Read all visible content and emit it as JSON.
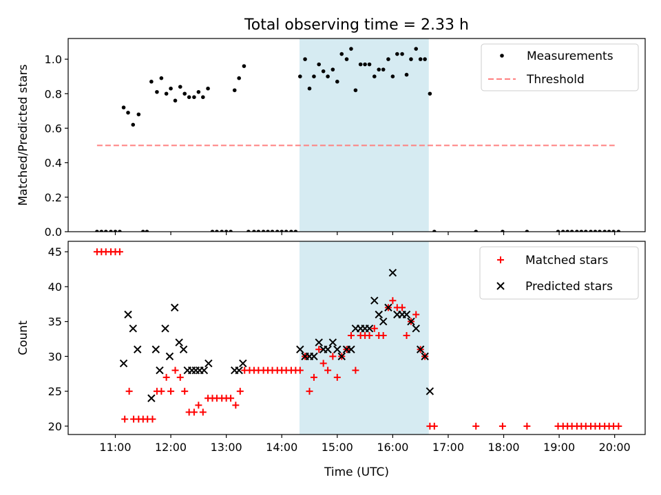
{
  "figure": {
    "title": "Total observing time = 2.33 h",
    "xlabel": "Time (UTC)",
    "x_ticks": [
      {
        "t": 11.0,
        "label": "11:00"
      },
      {
        "t": 12.0,
        "label": "12:00"
      },
      {
        "t": 13.0,
        "label": "13:00"
      },
      {
        "t": 14.0,
        "label": "14:00"
      },
      {
        "t": 15.0,
        "label": "15:00"
      },
      {
        "t": 16.0,
        "label": "16:00"
      },
      {
        "t": 17.0,
        "label": "17:00"
      },
      {
        "t": 18.0,
        "label": "18:00"
      },
      {
        "t": 19.0,
        "label": "19:00"
      },
      {
        "t": 20.0,
        "label": "20:00"
      }
    ],
    "xlim": [
      10.15,
      20.55
    ],
    "shaded_span": [
      14.32,
      16.65
    ],
    "shade_color": "#add8e6"
  },
  "chart_data": [
    {
      "type": "scatter",
      "ylabel": "Matched/Predicted stars",
      "ylim": [
        0,
        1.12
      ],
      "yticks": [
        "0.0",
        "0.2",
        "0.4",
        "0.6",
        "0.8",
        "1.0"
      ],
      "legend_position": "top-right",
      "series": [
        {
          "name": "Measurements",
          "marker": "dot",
          "color": "#000000",
          "points": [
            [
              10.67,
              0
            ],
            [
              10.75,
              0
            ],
            [
              10.83,
              0
            ],
            [
              10.92,
              0
            ],
            [
              11.0,
              0
            ],
            [
              11.08,
              0
            ],
            [
              11.15,
              0.72
            ],
            [
              11.23,
              0.69
            ],
            [
              11.32,
              0.62
            ],
            [
              11.42,
              0.68
            ],
            [
              11.5,
              0
            ],
            [
              11.57,
              0
            ],
            [
              11.65,
              0.87
            ],
            [
              11.75,
              0.81
            ],
            [
              11.83,
              0.89
            ],
            [
              11.92,
              0.8
            ],
            [
              12.0,
              0.83
            ],
            [
              12.08,
              0.76
            ],
            [
              12.17,
              0.84
            ],
            [
              12.25,
              0.8
            ],
            [
              12.33,
              0.78
            ],
            [
              12.42,
              0.78
            ],
            [
              12.5,
              0.81
            ],
            [
              12.58,
              0.78
            ],
            [
              12.67,
              0.83
            ],
            [
              12.75,
              0
            ],
            [
              12.83,
              0
            ],
            [
              12.92,
              0
            ],
            [
              13.0,
              0
            ],
            [
              13.08,
              0
            ],
            [
              13.15,
              0.82
            ],
            [
              13.23,
              0.89
            ],
            [
              13.32,
              0.96
            ],
            [
              13.4,
              0
            ],
            [
              13.5,
              0
            ],
            [
              13.58,
              0
            ],
            [
              13.67,
              0
            ],
            [
              13.75,
              0
            ],
            [
              13.83,
              0
            ],
            [
              13.92,
              0
            ],
            [
              14.0,
              0
            ],
            [
              14.08,
              0
            ],
            [
              14.17,
              0
            ],
            [
              14.25,
              0
            ],
            [
              14.33,
              0.9
            ],
            [
              14.42,
              1.0
            ],
            [
              14.5,
              0.83
            ],
            [
              14.58,
              0.9
            ],
            [
              14.67,
              0.97
            ],
            [
              14.75,
              0.93
            ],
            [
              14.83,
              0.9
            ],
            [
              14.92,
              0.94
            ],
            [
              15.0,
              0.87
            ],
            [
              15.08,
              1.03
            ],
            [
              15.17,
              1.0
            ],
            [
              15.25,
              1.06
            ],
            [
              15.33,
              0.82
            ],
            [
              15.42,
              0.97
            ],
            [
              15.5,
              0.97
            ],
            [
              15.58,
              0.97
            ],
            [
              15.67,
              0.9
            ],
            [
              15.75,
              0.94
            ],
            [
              15.83,
              0.94
            ],
            [
              15.92,
              1.0
            ],
            [
              16.0,
              0.9
            ],
            [
              16.08,
              1.03
            ],
            [
              16.17,
              1.03
            ],
            [
              16.25,
              0.91
            ],
            [
              16.33,
              1.0
            ],
            [
              16.42,
              1.06
            ],
            [
              16.5,
              1.0
            ],
            [
              16.58,
              1.0
            ],
            [
              16.67,
              0.8
            ],
            [
              16.75,
              0
            ],
            [
              17.5,
              0
            ],
            [
              17.98,
              0
            ],
            [
              18.42,
              0
            ],
            [
              18.98,
              0
            ],
            [
              19.07,
              0
            ],
            [
              19.15,
              0
            ],
            [
              19.23,
              0
            ],
            [
              19.32,
              0
            ],
            [
              19.4,
              0
            ],
            [
              19.48,
              0
            ],
            [
              19.57,
              0
            ],
            [
              19.65,
              0
            ],
            [
              19.73,
              0
            ],
            [
              19.82,
              0
            ],
            [
              19.9,
              0
            ],
            [
              19.98,
              0
            ],
            [
              20.07,
              0
            ]
          ]
        },
        {
          "name": "Threshold",
          "marker": "dashed-line",
          "color": "#ff7f7f",
          "points": [
            [
              10.67,
              0.5
            ],
            [
              20.0,
              0.5
            ]
          ]
        }
      ]
    },
    {
      "type": "scatter",
      "ylabel": "Count",
      "ylim": [
        18.8,
        46.5
      ],
      "yticks": [
        "20",
        "25",
        "30",
        "35",
        "40",
        "45"
      ],
      "legend_position": "top-right",
      "series": [
        {
          "name": "Matched stars",
          "marker": "plus",
          "color": "#ff0000",
          "points": [
            [
              10.67,
              45
            ],
            [
              10.75,
              45
            ],
            [
              10.83,
              45
            ],
            [
              10.92,
              45
            ],
            [
              11.0,
              45
            ],
            [
              11.08,
              45
            ],
            [
              11.17,
              21
            ],
            [
              11.25,
              25
            ],
            [
              11.33,
              21
            ],
            [
              11.42,
              21
            ],
            [
              11.5,
              21
            ],
            [
              11.58,
              21
            ],
            [
              11.67,
              21
            ],
            [
              11.75,
              25
            ],
            [
              11.83,
              25
            ],
            [
              11.92,
              27
            ],
            [
              12.0,
              25
            ],
            [
              12.08,
              28
            ],
            [
              12.17,
              27
            ],
            [
              12.25,
              25
            ],
            [
              12.33,
              22
            ],
            [
              12.42,
              22
            ],
            [
              12.5,
              23
            ],
            [
              12.58,
              22
            ],
            [
              12.67,
              24
            ],
            [
              12.75,
              24
            ],
            [
              12.83,
              24
            ],
            [
              12.92,
              24
            ],
            [
              13.0,
              24
            ],
            [
              13.08,
              24
            ],
            [
              13.17,
              23
            ],
            [
              13.25,
              25
            ],
            [
              13.33,
              28
            ],
            [
              13.42,
              28
            ],
            [
              13.5,
              28
            ],
            [
              13.58,
              28
            ],
            [
              13.67,
              28
            ],
            [
              13.75,
              28
            ],
            [
              13.83,
              28
            ],
            [
              13.92,
              28
            ],
            [
              14.0,
              28
            ],
            [
              14.08,
              28
            ],
            [
              14.17,
              28
            ],
            [
              14.25,
              28
            ],
            [
              14.33,
              28
            ],
            [
              14.42,
              30
            ],
            [
              14.5,
              25
            ],
            [
              14.58,
              27
            ],
            [
              14.67,
              31
            ],
            [
              14.75,
              29
            ],
            [
              14.83,
              28
            ],
            [
              14.92,
              30
            ],
            [
              15.0,
              27
            ],
            [
              15.08,
              30
            ],
            [
              15.17,
              31
            ],
            [
              15.25,
              33
            ],
            [
              15.33,
              28
            ],
            [
              15.42,
              33
            ],
            [
              15.5,
              33
            ],
            [
              15.58,
              33
            ],
            [
              15.67,
              34
            ],
            [
              15.75,
              33
            ],
            [
              15.83,
              33
            ],
            [
              15.92,
              37
            ],
            [
              16.0,
              38
            ],
            [
              16.08,
              37
            ],
            [
              16.17,
              37
            ],
            [
              16.25,
              33
            ],
            [
              16.33,
              35
            ],
            [
              16.42,
              36
            ],
            [
              16.5,
              31
            ],
            [
              16.58,
              30
            ],
            [
              16.67,
              20
            ],
            [
              16.75,
              20
            ],
            [
              17.5,
              20
            ],
            [
              17.98,
              20
            ],
            [
              18.42,
              20
            ],
            [
              18.98,
              20
            ],
            [
              19.07,
              20
            ],
            [
              19.15,
              20
            ],
            [
              19.23,
              20
            ],
            [
              19.32,
              20
            ],
            [
              19.4,
              20
            ],
            [
              19.48,
              20
            ],
            [
              19.57,
              20
            ],
            [
              19.65,
              20
            ],
            [
              19.73,
              20
            ],
            [
              19.82,
              20
            ],
            [
              19.9,
              20
            ],
            [
              19.98,
              20
            ],
            [
              20.07,
              20
            ]
          ]
        },
        {
          "name": "Predicted stars",
          "marker": "x",
          "color": "#000000",
          "points": [
            [
              11.15,
              29
            ],
            [
              11.23,
              36
            ],
            [
              11.32,
              34
            ],
            [
              11.4,
              31
            ],
            [
              11.65,
              24
            ],
            [
              11.73,
              31
            ],
            [
              11.8,
              28
            ],
            [
              11.9,
              34
            ],
            [
              11.98,
              30
            ],
            [
              12.07,
              37
            ],
            [
              12.15,
              32
            ],
            [
              12.23,
              31
            ],
            [
              12.3,
              28
            ],
            [
              12.38,
              28
            ],
            [
              12.45,
              28
            ],
            [
              12.52,
              28
            ],
            [
              12.6,
              28
            ],
            [
              12.68,
              29
            ],
            [
              13.15,
              28
            ],
            [
              13.23,
              28
            ],
            [
              13.3,
              29
            ],
            [
              14.33,
              31
            ],
            [
              14.42,
              30
            ],
            [
              14.5,
              30
            ],
            [
              14.58,
              30
            ],
            [
              14.67,
              32
            ],
            [
              14.75,
              31
            ],
            [
              14.83,
              31
            ],
            [
              14.92,
              32
            ],
            [
              15.0,
              31
            ],
            [
              15.08,
              30
            ],
            [
              15.17,
              31
            ],
            [
              15.25,
              31
            ],
            [
              15.33,
              34
            ],
            [
              15.42,
              34
            ],
            [
              15.5,
              34
            ],
            [
              15.58,
              34
            ],
            [
              15.67,
              38
            ],
            [
              15.75,
              36
            ],
            [
              15.83,
              35
            ],
            [
              15.92,
              37
            ],
            [
              16.0,
              42
            ],
            [
              16.08,
              36
            ],
            [
              16.17,
              36
            ],
            [
              16.25,
              36
            ],
            [
              16.33,
              35
            ],
            [
              16.42,
              34
            ],
            [
              16.5,
              31
            ],
            [
              16.58,
              30
            ],
            [
              16.67,
              25
            ]
          ]
        }
      ]
    }
  ]
}
